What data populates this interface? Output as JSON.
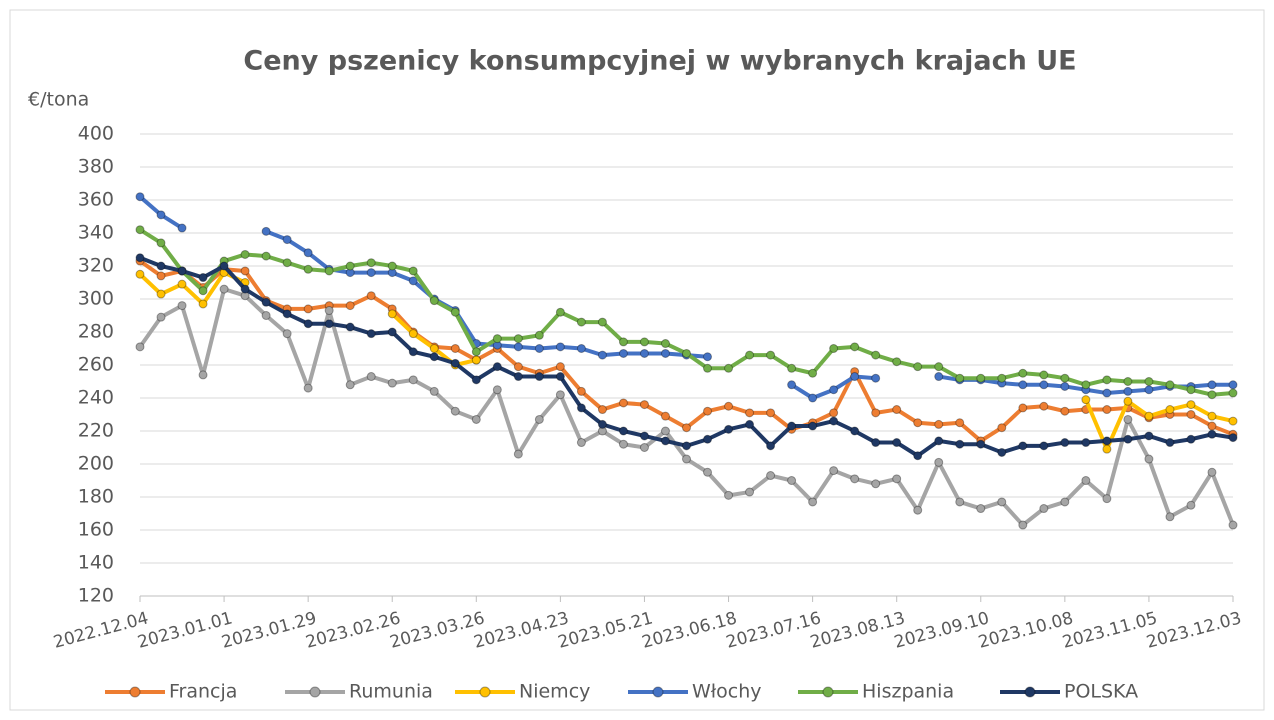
{
  "chart_data": {
    "type": "line",
    "title": "Ceny pszenicy konsumpcyjnej w wybranych krajach UE",
    "y_label": "€/tona",
    "categories": [
      "2022.12.04",
      null,
      null,
      null,
      "2023.01.01",
      null,
      null,
      null,
      "2023.01.29",
      null,
      null,
      null,
      "2023.02.26",
      null,
      null,
      null,
      "2023.03.26",
      null,
      null,
      null,
      "2023.04.23",
      null,
      null,
      null,
      "2023.05.21",
      null,
      null,
      null,
      "2023.06.18",
      null,
      null,
      null,
      "2023.07.16",
      null,
      null,
      null,
      "2023.08.13",
      null,
      null,
      null,
      "2023.09.10",
      null,
      null,
      null,
      "2023.10.08",
      null,
      null,
      null,
      "2023.11.05",
      null,
      null,
      null,
      "2023.12.03"
    ],
    "ylim": [
      120,
      400
    ],
    "yticks": [
      120,
      140,
      160,
      180,
      200,
      220,
      240,
      260,
      280,
      300,
      320,
      340,
      360,
      380,
      400
    ],
    "grid": true,
    "legend": "bottom",
    "series": [
      {
        "name": "Francja",
        "color": "#ed7d31",
        "values": [
          323,
          314,
          317,
          307,
          318,
          317,
          299,
          294,
          294,
          296,
          296,
          302,
          294,
          280,
          271,
          270,
          263,
          270,
          259,
          255,
          259,
          244,
          233,
          237,
          236,
          229,
          222,
          232,
          235,
          231,
          231,
          221,
          225,
          231,
          256,
          231,
          233,
          225,
          224,
          225,
          214,
          222,
          234,
          235,
          232,
          233,
          233,
          234,
          228,
          230,
          230,
          223,
          218
        ]
      },
      {
        "name": "Rumunia",
        "color": "#a5a5a5",
        "values": [
          271,
          289,
          296,
          254,
          306,
          302,
          290,
          279,
          246,
          293,
          248,
          253,
          249,
          251,
          244,
          232,
          227,
          245,
          206,
          227,
          242,
          213,
          220,
          212,
          210,
          220,
          203,
          195,
          181,
          183,
          193,
          190,
          177,
          196,
          191,
          188,
          191,
          172,
          201,
          177,
          173,
          177,
          163,
          173,
          177,
          190,
          179,
          227,
          203,
          168,
          175,
          195,
          163
        ]
      },
      {
        "name": "Niemcy",
        "color": "#ffc000",
        "values": [
          315,
          303,
          309,
          297,
          316,
          310,
          null,
          null,
          null,
          null,
          null,
          null,
          291,
          279,
          270,
          260,
          263,
          null,
          null,
          null,
          null,
          null,
          null,
          null,
          null,
          null,
          null,
          null,
          null,
          null,
          null,
          null,
          null,
          null,
          null,
          null,
          null,
          null,
          null,
          null,
          null,
          null,
          null,
          null,
          null,
          239,
          209,
          238,
          229,
          233,
          236,
          229,
          226
        ]
      },
      {
        "name": "Włochy",
        "color": "#4472c4",
        "values": [
          362,
          351,
          343,
          null,
          null,
          null,
          341,
          336,
          328,
          318,
          316,
          316,
          316,
          311,
          300,
          293,
          273,
          272,
          271,
          270,
          271,
          270,
          266,
          267,
          267,
          267,
          266,
          265,
          null,
          null,
          null,
          248,
          240,
          245,
          253,
          252,
          null,
          null,
          253,
          251,
          251,
          249,
          248,
          248,
          247,
          245,
          243,
          244,
          245,
          247,
          247,
          248,
          248
        ]
      },
      {
        "name": "Hiszpania",
        "color": "#70ad47",
        "values": [
          342,
          334,
          317,
          305,
          323,
          327,
          326,
          322,
          318,
          317,
          320,
          322,
          320,
          317,
          299,
          292,
          268,
          276,
          276,
          278,
          292,
          286,
          286,
          274,
          274,
          273,
          267,
          258,
          258,
          266,
          266,
          258,
          255,
          270,
          271,
          266,
          262,
          259,
          259,
          252,
          252,
          252,
          255,
          254,
          252,
          248,
          251,
          250,
          250,
          248,
          245,
          242,
          243
        ]
      },
      {
        "name": "POLSKA",
        "color": "#1f3864",
        "values": [
          325,
          320,
          317,
          313,
          320,
          306,
          298,
          291,
          285,
          285,
          283,
          279,
          280,
          268,
          265,
          261,
          251,
          259,
          253,
          253,
          253,
          234,
          224,
          220,
          217,
          214,
          211,
          215,
          221,
          224,
          211,
          223,
          223,
          226,
          220,
          213,
          213,
          205,
          214,
          212,
          212,
          207,
          211,
          211,
          213,
          213,
          214,
          215,
          217,
          213,
          215,
          218,
          216
        ]
      }
    ]
  }
}
